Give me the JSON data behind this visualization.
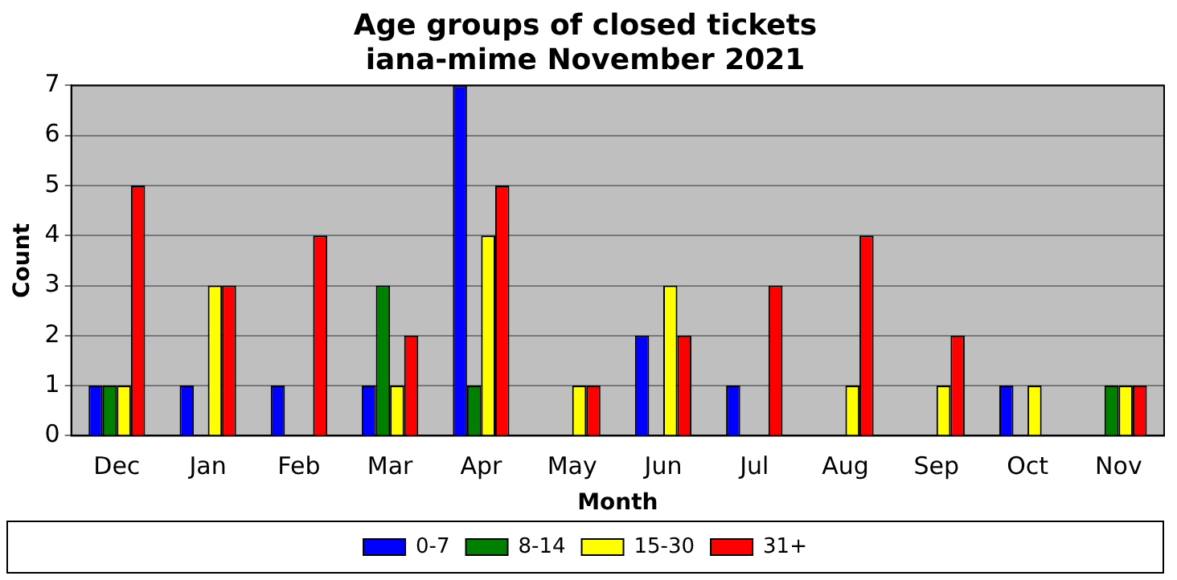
{
  "chart_data": {
    "type": "bar",
    "title": "Age groups of closed tickets",
    "subtitle": "iana-mime November 2021",
    "xlabel": "Month",
    "ylabel": "Count",
    "categories": [
      "Dec",
      "Jan",
      "Feb",
      "Mar",
      "Apr",
      "May",
      "Jun",
      "Jul",
      "Aug",
      "Sep",
      "Oct",
      "Nov"
    ],
    "series": [
      {
        "name": "0-7",
        "color": "#0000ff",
        "values": [
          1,
          1,
          1,
          1,
          7,
          0,
          2,
          1,
          0,
          0,
          1,
          0
        ]
      },
      {
        "name": "8-14",
        "color": "#008000",
        "values": [
          1,
          0,
          0,
          3,
          1,
          0,
          0,
          0,
          0,
          0,
          0,
          1
        ]
      },
      {
        "name": "15-30",
        "color": "#ffff00",
        "values": [
          1,
          3,
          0,
          1,
          4,
          1,
          3,
          0,
          1,
          1,
          1,
          1
        ]
      },
      {
        "name": "31+",
        "color": "#ff0000",
        "values": [
          5,
          3,
          4,
          2,
          5,
          1,
          2,
          3,
          4,
          2,
          0,
          1
        ]
      }
    ],
    "ylim": [
      0,
      7
    ],
    "yticks": [
      0,
      1,
      2,
      3,
      4,
      5,
      6,
      7
    ],
    "grid": "y",
    "legend": "bottom"
  }
}
